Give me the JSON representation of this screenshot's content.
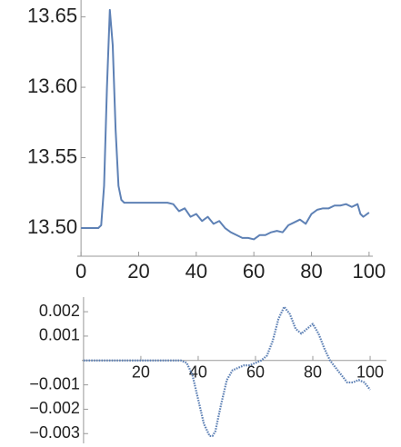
{
  "chart_data": [
    {
      "type": "line",
      "x": [
        0,
        2,
        4,
        6,
        7,
        8,
        9,
        10,
        11,
        12,
        13,
        14,
        15,
        16,
        20,
        25,
        30,
        32,
        34,
        36,
        38,
        40,
        42,
        44,
        46,
        48,
        50,
        52,
        54,
        56,
        58,
        60,
        62,
        64,
        66,
        68,
        70,
        72,
        74,
        76,
        78,
        80,
        82,
        84,
        86,
        88,
        90,
        92,
        94,
        96,
        97,
        98,
        100
      ],
      "series": [
        {
          "color": "#5e81b5",
          "values": [
            13.5,
            13.5,
            13.5,
            13.5,
            13.502,
            13.53,
            13.6,
            13.655,
            13.63,
            13.57,
            13.53,
            13.52,
            13.518,
            13.518,
            13.518,
            13.518,
            13.518,
            13.517,
            13.512,
            13.514,
            13.508,
            13.51,
            13.505,
            13.508,
            13.503,
            13.505,
            13.5,
            13.497,
            13.495,
            13.493,
            13.493,
            13.492,
            13.495,
            13.495,
            13.497,
            13.498,
            13.497,
            13.502,
            13.504,
            13.506,
            13.503,
            13.51,
            13.513,
            13.514,
            13.514,
            13.516,
            13.516,
            13.517,
            13.515,
            13.517,
            13.51,
            13.508,
            13.511
          ]
        }
      ],
      "xlim": [
        -1.3,
        101.3
      ],
      "ylim": [
        13.48,
        13.662
      ],
      "xticks": [
        0,
        20,
        40,
        60,
        80,
        100
      ],
      "yticks": [
        {
          "value": 13.5,
          "label": "13.50"
        },
        13.55,
        {
          "value": 13.6,
          "label": "13.60"
        },
        13.65
      ]
    },
    {
      "type": "line",
      "x": [
        0,
        10,
        20,
        30,
        34,
        36,
        38,
        40,
        42,
        44,
        45,
        46,
        48,
        50,
        52,
        54,
        56,
        58,
        60,
        62,
        64,
        66,
        68,
        70,
        72,
        74,
        76,
        78,
        80,
        82,
        84,
        86,
        88,
        90,
        92,
        94,
        96,
        98,
        100
      ],
      "series": [
        {
          "color": "#5e81b5",
          "values": [
            0,
            0,
            0,
            0,
            0,
            -0.0001,
            -0.0006,
            -0.0016,
            -0.0026,
            -0.0031,
            -0.0031,
            -0.0029,
            -0.0018,
            -0.0008,
            -0.0004,
            -0.0003,
            -0.0002,
            -0.0002,
            -0.0001,
            0,
            0.0002,
            0.0008,
            0.0017,
            0.0022,
            0.0019,
            0.0013,
            0.0011,
            0.0013,
            0.0015,
            0.0011,
            0.0005,
            0,
            -0.0003,
            -0.0006,
            -0.0009,
            -0.0009,
            -0.0008,
            -0.0009,
            -0.0012
          ]
        }
      ],
      "xlim": [
        -0.6,
        105.7
      ],
      "ylim": [
        -0.0034,
        0.0026
      ],
      "xticks": [
        20,
        40,
        60,
        80,
        100
      ],
      "yticks": [
        {
          "value": -0.003,
          "label": "−0.003"
        },
        {
          "value": -0.002,
          "label": "−0.002"
        },
        {
          "value": -0.001,
          "label": "−0.001"
        },
        0.001,
        0.002
      ]
    }
  ]
}
